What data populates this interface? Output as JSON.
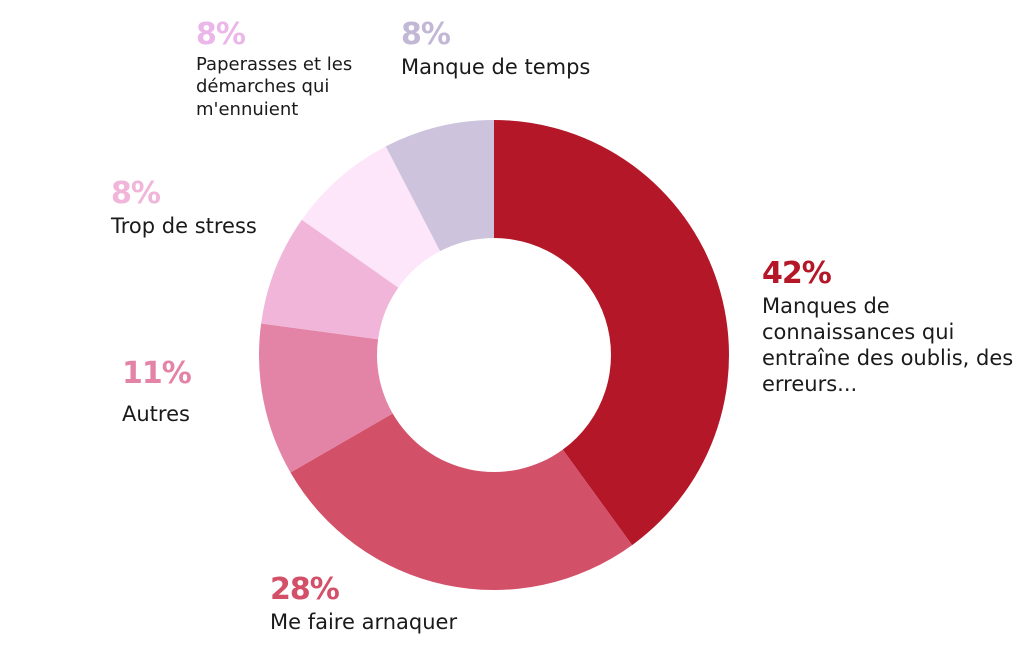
{
  "chart_data": {
    "type": "pie",
    "donut": true,
    "legend": "none",
    "slices": [
      {
        "label": "Manques de connaissances qui entraîne des oublis, des erreurs...",
        "value": 42,
        "display": "42%",
        "color": "#B31728"
      },
      {
        "label": "Me faire arnaquer",
        "value": 28,
        "display": "28%",
        "color": "#D35069"
      },
      {
        "label": "Autres",
        "value": 11,
        "display": "11%",
        "color": "#E383A6"
      },
      {
        "label": "Trop de stress",
        "value": 8,
        "display": "8%",
        "color": "#F0B5D8"
      },
      {
        "label": "Paperasses et les démarches qui m'ennuient",
        "value": 8,
        "display": "8%",
        "color": "#FDE6FA"
      },
      {
        "label": "Manque de temps",
        "value": 8,
        "display": "8%",
        "color": "#CDC3DD"
      }
    ],
    "label_colors": [
      "#B31728",
      "#D35069",
      "#E383A6",
      "#F0B5D8",
      "#EBB6E8",
      "#C2B8D6"
    ]
  }
}
